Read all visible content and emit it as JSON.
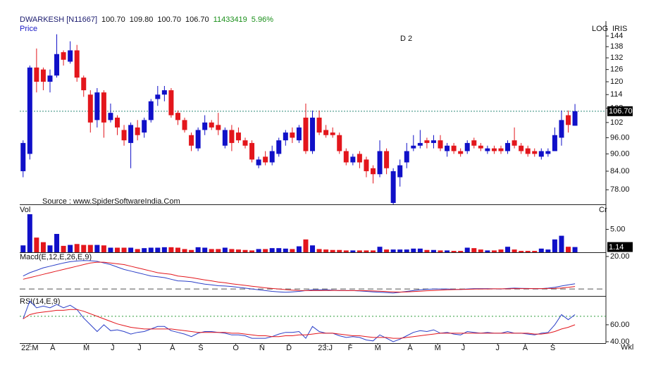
{
  "header": {
    "symbol": "DWARKESH [N11667]",
    "open": "100.70",
    "high": "109.80",
    "low": "100.70",
    "close": "106.70",
    "volume": "11433419",
    "change": "5.96%"
  },
  "chart_data": [
    {
      "type": "candlestick",
      "label": "Price",
      "scale": "log",
      "scale_label": "LOG",
      "indicator_label": "IRIS",
      "annotation": "D 2",
      "source": "Source : www.SpiderSoftwareIndia.Com",
      "last_label": "106.70",
      "up_color": "#1010c8",
      "down_color": "#e3161c",
      "line_color": "#2e8b7a",
      "open": [
        84,
        90,
        127,
        126,
        120,
        123,
        135,
        130,
        136,
        122,
        114,
        103,
        115,
        103,
        104,
        99,
        94,
        100,
        98,
        103,
        112,
        114,
        116,
        106,
        103,
        97,
        92,
        99,
        102,
        101,
        93,
        99,
        98,
        95,
        94,
        86,
        89,
        87,
        90,
        95,
        98,
        95,
        104,
        91,
        104,
        99,
        98,
        97,
        91,
        87,
        90,
        88,
        85,
        83,
        91,
        74,
        82,
        87,
        92,
        93,
        95,
        94,
        95,
        91,
        93,
        91,
        91,
        95,
        93,
        91,
        92,
        92,
        91,
        95,
        93,
        92,
        91,
        89,
        90,
        91,
        96,
        105,
        100.7
      ],
      "high": [
        95,
        128,
        137,
        127,
        126,
        145,
        136,
        141,
        139,
        123,
        116,
        117,
        116,
        110,
        105,
        101,
        102,
        103,
        104,
        112,
        118,
        118,
        117,
        107,
        104,
        98,
        100,
        105,
        103,
        106,
        100,
        101,
        100,
        96,
        95,
        89,
        91,
        93,
        96,
        99,
        100,
        101,
        110,
        107,
        107,
        101,
        100,
        98,
        92,
        90,
        91,
        89,
        86,
        95,
        92,
        85,
        88,
        94,
        97,
        99,
        96,
        97,
        97,
        94,
        94,
        92,
        95,
        96,
        94,
        93,
        93,
        93,
        95,
        100,
        94,
        93,
        92,
        92,
        92,
        100,
        107,
        107,
        109.8
      ],
      "low": [
        82,
        88,
        115,
        116,
        115,
        122,
        128,
        129,
        120,
        113,
        98,
        100,
        96,
        102,
        97,
        93,
        85,
        95,
        96,
        102,
        109,
        111,
        104,
        101,
        98,
        91,
        91,
        97,
        99,
        97,
        92,
        91,
        94,
        92,
        87,
        85,
        86,
        86,
        89,
        93,
        94,
        94,
        90,
        90,
        97,
        96,
        96,
        90,
        86,
        86,
        85,
        82,
        80,
        82,
        83,
        72,
        79,
        85,
        91,
        92,
        92,
        92,
        91,
        89,
        90,
        89,
        90,
        92,
        91,
        90,
        90,
        90,
        90,
        92,
        90,
        89,
        89,
        88,
        89,
        91,
        93,
        98,
        100.7
      ],
      "close": [
        94,
        127,
        120,
        120,
        123,
        134,
        131,
        136,
        122,
        116,
        102,
        115,
        102,
        106,
        100,
        95,
        101,
        97,
        103,
        111,
        114,
        116,
        105,
        103,
        99,
        93,
        99,
        102,
        100,
        99,
        99,
        94,
        95,
        93,
        88,
        88,
        87,
        91,
        95,
        98,
        96,
        100,
        91,
        104,
        98,
        97,
        97,
        91,
        87,
        89,
        87,
        84,
        83,
        91,
        85,
        84,
        86,
        91,
        93,
        94,
        94,
        95,
        92,
        93,
        91,
        90,
        94,
        93,
        92,
        92,
        91,
        91,
        94,
        93,
        91,
        90,
        90,
        91,
        91,
        97,
        103,
        101,
        106.7
      ],
      "xlim": [
        -0.5,
        86.6
      ],
      "ylim": [
        73.6,
        152.8
      ],
      "yticks": [
        144,
        138,
        132,
        126,
        120,
        114,
        108,
        102,
        {
          "value": 96,
          "label": "96.00"
        },
        {
          "value": 90,
          "label": "90.00"
        },
        {
          "value": 84,
          "label": "84.00"
        },
        {
          "value": 78,
          "label": "78.00"
        }
      ]
    },
    {
      "type": "bar",
      "label": "Vol",
      "unit_label": "Cr",
      "last_label": "1.14",
      "values": [
        1.5,
        8.3,
        3.2,
        2.2,
        1.5,
        4,
        1.4,
        1.6,
        1.8,
        1.6,
        1.6,
        1.6,
        1.5,
        1.0,
        1.0,
        1.0,
        1.0,
        0.7,
        0.9,
        1.0,
        1.0,
        1.1,
        1.1,
        1.0,
        0.7,
        0.5,
        1.1,
        1.0,
        0.7,
        0.7,
        1.0,
        0.7,
        0.6,
        0.5,
        0.4,
        0.7,
        0.7,
        0.9,
        0.9,
        0.8,
        0.7,
        1.3,
        2.8,
        1.5,
        0.7,
        0.6,
        0.5,
        0.5,
        0.4,
        0.4,
        0.4,
        0.4,
        0.4,
        1.2,
        0.6,
        0.6,
        0.6,
        0.6,
        0.8,
        0.8,
        0.5,
        0.5,
        0.4,
        0.4,
        0.3,
        0.3,
        1.0,
        0.9,
        0.6,
        0.4,
        0.4,
        0.6,
        1.2,
        0.6,
        0.3,
        0.3,
        0.3,
        0.8,
        0.6,
        2.8,
        3.6,
        1.2,
        1.14
      ],
      "ylim": [
        0,
        10.3
      ],
      "yticks": [
        {
          "value": 5,
          "label": "5.00"
        }
      ]
    },
    {
      "type": "line",
      "label": "Macd(E,12,E,26,E,9)",
      "reference_line": 0,
      "reference_color": "#555555",
      "reference_dash": "8 5",
      "series": [
        {
          "color": "#2b3fc8",
          "values": [
            8,
            10,
            11.5,
            13,
            14,
            15,
            16,
            16.8,
            17.2,
            17.5,
            17.4,
            17,
            16,
            15,
            13.5,
            12,
            11,
            10,
            9,
            8,
            7.5,
            7,
            6,
            5,
            4.8,
            4.5,
            3.7,
            3,
            2.5,
            2,
            1.8,
            1.5,
            1,
            0.5,
            0,
            -0.5,
            -1,
            -1.5,
            -1.8,
            -2,
            -1.8,
            -1.5,
            -1,
            -0.5,
            -0.5,
            -0.5,
            -0.8,
            -1,
            -1,
            -1,
            -1.2,
            -1.5,
            -1.8,
            -2,
            -2.2,
            -2.5,
            -2,
            -1.5,
            -1,
            -0.5,
            -0.2,
            0,
            0,
            0,
            -0.2,
            -0.3,
            0,
            0.2,
            0.2,
            0.2,
            0.1,
            0,
            0.3,
            0.5,
            0.4,
            0.3,
            0.2,
            0.2,
            0.5,
            1,
            1.8,
            2.5,
            3.2
          ]
        },
        {
          "color": "#e3161c",
          "values": [
            6,
            7,
            8,
            9,
            10,
            11,
            12,
            13,
            14,
            15,
            16,
            16.5,
            16.5,
            16,
            15.5,
            15,
            14,
            13,
            12,
            11,
            10,
            9.5,
            9,
            8,
            7.5,
            7,
            6.3,
            5.6,
            5,
            4.3,
            3.8,
            3.2,
            2.7,
            2.2,
            1.7,
            1.2,
            0.7,
            0.3,
            0,
            -0.4,
            -0.7,
            -0.9,
            -1,
            -1,
            -1,
            -0.9,
            -0.9,
            -0.9,
            -1,
            -1,
            -1,
            -1.1,
            -1.2,
            -1.4,
            -1.6,
            -1.8,
            -1.9,
            -1.8,
            -1.6,
            -1.4,
            -1.1,
            -0.9,
            -0.7,
            -0.5,
            -0.4,
            -0.3,
            -0.2,
            -0.1,
            0,
            0,
            0.1,
            0.1,
            0.1,
            0.2,
            0.2,
            0.2,
            0.2,
            0.2,
            0.3,
            0.4,
            0.6,
            1,
            1.5
          ]
        }
      ],
      "ylim": [
        -4.3,
        22.6
      ],
      "yticks": [
        {
          "value": 20,
          "label": "20.00"
        }
      ]
    },
    {
      "type": "line",
      "label": "RSI(14,E,9)",
      "reference_line": 70,
      "reference_color": "#2e9b3a",
      "reference_dash": "2 3",
      "x_unit_label": "Wkl",
      "series": [
        {
          "color": "#2b3fc8",
          "values": [
            67,
            88,
            80,
            82,
            80,
            84,
            80,
            83,
            78,
            68,
            60,
            52,
            60,
            53,
            54,
            52,
            49,
            51,
            52,
            55,
            58,
            58,
            53,
            51,
            49,
            46,
            50,
            52,
            52,
            51,
            50,
            48,
            48,
            47,
            44,
            44,
            44,
            46,
            49,
            51,
            51,
            52,
            44,
            58,
            52,
            50,
            50,
            47,
            45,
            46,
            45,
            42,
            41,
            48,
            44,
            40,
            43,
            47,
            51,
            53,
            52,
            54,
            50,
            51,
            49,
            48,
            52,
            51,
            50,
            51,
            50,
            50,
            52,
            50,
            50,
            49,
            48,
            50,
            51,
            60,
            72,
            66,
            72
          ]
        },
        {
          "color": "#e3161c",
          "values": [
            67,
            72,
            74,
            75,
            76,
            77,
            77,
            78,
            78,
            76,
            73,
            70,
            67,
            64,
            61,
            59,
            57,
            56,
            55,
            55,
            55,
            55,
            55,
            54,
            53,
            52,
            51,
            51,
            51,
            51,
            51,
            50,
            50,
            49,
            48,
            47,
            47,
            46,
            46,
            47,
            47,
            48,
            48,
            49,
            50,
            50,
            50,
            49,
            48,
            47,
            47,
            46,
            45,
            45,
            45,
            44,
            44,
            45,
            46,
            47,
            48,
            49,
            50,
            50,
            50,
            50,
            50,
            50,
            50,
            50,
            50,
            50,
            50,
            50,
            50,
            50,
            49,
            49,
            50,
            52,
            55,
            57,
            60
          ]
        }
      ],
      "ylim": [
        38.3,
        94
      ],
      "yticks": [
        {
          "value": 60,
          "label": "60.00"
        },
        {
          "value": 40,
          "label": "40.00"
        }
      ],
      "xticks": [
        {
          "value": 1,
          "label": "22:M"
        },
        {
          "value": 4.4,
          "label": "A"
        },
        {
          "value": 9.4,
          "label": "M"
        },
        {
          "value": 13.3,
          "label": "J"
        },
        {
          "value": 17.3,
          "label": "J"
        },
        {
          "value": 22.2,
          "label": "A"
        },
        {
          "value": 26.4,
          "label": "S"
        },
        {
          "value": 31.6,
          "label": "O"
        },
        {
          "value": 35.5,
          "label": "N"
        },
        {
          "value": 39.5,
          "label": "D"
        },
        {
          "value": 44.9,
          "label": "23:J"
        },
        {
          "value": 48.6,
          "label": "F"
        },
        {
          "value": 52.7,
          "label": "M"
        },
        {
          "value": 57.5,
          "label": "A"
        },
        {
          "value": 61.6,
          "label": "M"
        },
        {
          "value": 65.4,
          "label": "J"
        },
        {
          "value": 70.5,
          "label": "J"
        },
        {
          "value": 74.6,
          "label": "A"
        },
        {
          "value": 78.7,
          "label": "S"
        }
      ]
    }
  ]
}
